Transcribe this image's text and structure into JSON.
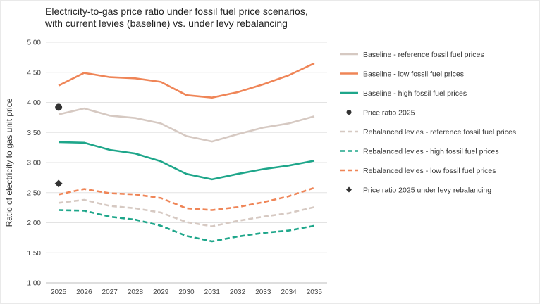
{
  "chart_data": {
    "type": "line",
    "title": "Electricity-to-gas price ratio under fossil fuel price scenarios,\nwith current levies (baseline) vs. under levy rebalancing",
    "xlabel": "",
    "ylabel": "Ratio of electricity to gas unit price",
    "ylim": [
      1.0,
      5.0
    ],
    "yticks": [
      "1.00",
      "1.50",
      "2.00",
      "2.50",
      "3.00",
      "3.50",
      "4.00",
      "4.50",
      "5.00"
    ],
    "categories": [
      "2025",
      "2026",
      "2027",
      "2028",
      "2029",
      "2030",
      "2031",
      "2032",
      "2033",
      "2034",
      "2035"
    ],
    "grid": true,
    "legend_position": "right",
    "series": [
      {
        "name": "Baseline - reference fossil fuel prices",
        "kind": "line",
        "style": "solid",
        "color": "#d6c9c2",
        "values": [
          3.8,
          3.9,
          3.78,
          3.74,
          3.65,
          3.44,
          3.35,
          3.47,
          3.58,
          3.65,
          3.77
        ]
      },
      {
        "name": "Baseline - low fossil fuel prices",
        "kind": "line",
        "style": "solid",
        "color": "#ef8557",
        "values": [
          4.28,
          4.49,
          4.42,
          4.4,
          4.34,
          4.12,
          4.08,
          4.17,
          4.3,
          4.45,
          4.65
        ]
      },
      {
        "name": "Baseline - high fossil fuel prices",
        "kind": "line",
        "style": "solid",
        "color": "#1ea68a",
        "values": [
          3.34,
          3.33,
          3.21,
          3.15,
          3.02,
          2.81,
          2.72,
          2.81,
          2.89,
          2.95,
          3.03
        ]
      },
      {
        "name": "Price ratio 2025",
        "kind": "marker",
        "marker": "circle",
        "color": "#333333",
        "x": "2025",
        "value": 3.92
      },
      {
        "name": "Rebalanced levies - reference fossil fuel prices",
        "kind": "line",
        "style": "dashed",
        "color": "#d6c9c2",
        "values": [
          2.33,
          2.38,
          2.28,
          2.24,
          2.17,
          2.01,
          1.94,
          2.03,
          2.1,
          2.16,
          2.26
        ]
      },
      {
        "name": "Rebalanced levies - high fossil fuel prices",
        "kind": "line",
        "style": "dashed",
        "color": "#1ea68a",
        "values": [
          2.21,
          2.2,
          2.1,
          2.05,
          1.95,
          1.78,
          1.69,
          1.77,
          1.83,
          1.87,
          1.95
        ]
      },
      {
        "name": "Rebalanced levies - low fossil fuel prices",
        "kind": "line",
        "style": "dashed",
        "color": "#ef8557",
        "values": [
          2.47,
          2.56,
          2.49,
          2.47,
          2.41,
          2.24,
          2.21,
          2.26,
          2.34,
          2.44,
          2.58
        ]
      },
      {
        "name": "Price ratio 2025 under levy rebalancing",
        "kind": "marker",
        "marker": "diamond",
        "color": "#333333",
        "x": "2025",
        "value": 2.65
      }
    ]
  }
}
